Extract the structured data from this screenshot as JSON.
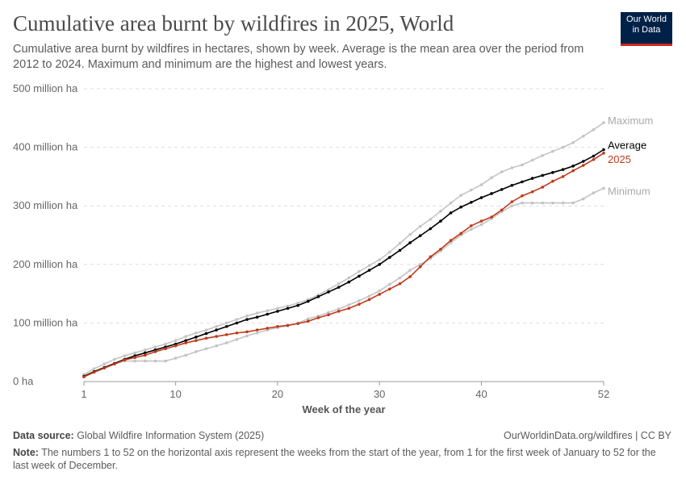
{
  "header": {
    "title": "Cumulative area burnt by wildfires in 2025, World",
    "subtitle": "Cumulative area burnt by wildfires in hectares, shown by week. Average is the mean area over the period from 2012 to 2024. Maximum and minimum are the highest and lowest years.",
    "logo": [
      "Our World",
      "in Data"
    ]
  },
  "chart_data": {
    "type": "line",
    "title": "Cumulative area burnt by wildfires in 2025, World",
    "xlabel": "Week of the year",
    "ylabel": "",
    "xlim": [
      1,
      52
    ],
    "ylim": [
      0,
      500
    ],
    "x_ticks": [
      "1",
      "10",
      "20",
      "30",
      "40",
      "52"
    ],
    "y_ticks": [
      "0 ha",
      "100 million ha",
      "200 million ha",
      "300 million ha",
      "400 million ha",
      "500 million ha"
    ],
    "grid": "horizontal dashed",
    "legend": "inline labels at line ends",
    "unit": "million ha",
    "x": [
      1,
      2,
      3,
      4,
      5,
      6,
      7,
      8,
      9,
      10,
      11,
      12,
      13,
      14,
      15,
      16,
      17,
      18,
      19,
      20,
      21,
      22,
      23,
      24,
      25,
      26,
      27,
      28,
      29,
      30,
      31,
      32,
      33,
      34,
      35,
      36,
      37,
      38,
      39,
      40,
      41,
      42,
      43,
      44,
      45,
      46,
      47,
      48,
      49,
      50,
      51,
      52
    ],
    "series": [
      {
        "name": "Maximum",
        "color": "#c4c4c4",
        "values": [
          12,
          22,
          30,
          38,
          44,
          49,
          54,
          59,
          64,
          70,
          77,
          83,
          88,
          94,
          100,
          106,
          112,
          117,
          121,
          125,
          129,
          134,
          140,
          148,
          157,
          167,
          177,
          188,
          198,
          208,
          221,
          236,
          251,
          265,
          277,
          291,
          305,
          318,
          327,
          336,
          348,
          358,
          365,
          370,
          378,
          386,
          393,
          400,
          408,
          419,
          430,
          442
        ]
      },
      {
        "name": "Minimum",
        "color": "#c4c4c4",
        "values": [
          9,
          16,
          23,
          30,
          35,
          35,
          35,
          35,
          35,
          40,
          45,
          51,
          56,
          61,
          66,
          72,
          78,
          83,
          88,
          92,
          95,
          100,
          107,
          112,
          118,
          124,
          131,
          138,
          146,
          155,
          166,
          177,
          190,
          200,
          210,
          223,
          237,
          250,
          260,
          268,
          278,
          290,
          300,
          305,
          305,
          305,
          305,
          305,
          305,
          312,
          322,
          330
        ]
      },
      {
        "name": "Average",
        "color": "#000000",
        "values": [
          9,
          17,
          24,
          31,
          38,
          44,
          49,
          54,
          59,
          64,
          70,
          76,
          82,
          88,
          94,
          100,
          106,
          110,
          115,
          120,
          125,
          130,
          137,
          145,
          153,
          161,
          170,
          180,
          190,
          200,
          212,
          224,
          237,
          249,
          261,
          274,
          288,
          298,
          306,
          314,
          321,
          328,
          335,
          341,
          347,
          352,
          357,
          362,
          368,
          376,
          385,
          396
        ]
      },
      {
        "name": "2025",
        "color": "#c0391b",
        "values": [
          8,
          16,
          23,
          30,
          37,
          41,
          45,
          51,
          56,
          61,
          66,
          70,
          74,
          77,
          80,
          83,
          85,
          88,
          91,
          94,
          96,
          99,
          103,
          109,
          114,
          120,
          125,
          132,
          140,
          149,
          158,
          167,
          179,
          196,
          213,
          226,
          241,
          253,
          266,
          274,
          281,
          293,
          307,
          317,
          324,
          332,
          342,
          350,
          360,
          369,
          379,
          390
        ]
      }
    ]
  },
  "footer": {
    "source_label": "Data source:",
    "source": "Global Wildfire Information System (2025)",
    "link": "OurWorldinData.org/wildfires | CC BY",
    "note_label": "Note:",
    "note": "The numbers 1 to 52 on the horizontal axis represent the weeks from the start of the year, from 1 for the first week of January to 52 for the last week of December."
  }
}
